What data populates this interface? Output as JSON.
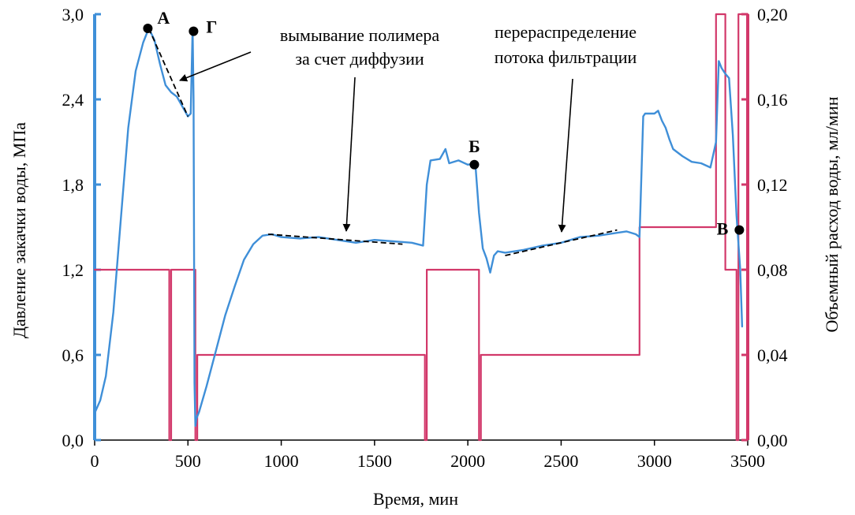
{
  "chart_data": {
    "type": "line",
    "xlabel": "Время, мин",
    "ylabel_left": "Давление закачки воды, МПа",
    "ylabel_right": "Объемный расход воды, мл/мин",
    "xlim": [
      0,
      3500
    ],
    "ylim_left": [
      0,
      3.0
    ],
    "ylim_right": [
      0,
      0.2
    ],
    "x_ticks": [
      "0",
      "500",
      "1000",
      "1500",
      "2000",
      "2500",
      "3000",
      "3500"
    ],
    "y_left_ticks": [
      "0,0",
      "0,6",
      "1,2",
      "1,8",
      "2,4",
      "3,0"
    ],
    "y_right_ticks": [
      "0,00",
      "0,04",
      "0,08",
      "0,12",
      "0,16",
      "0,20"
    ],
    "grid": false,
    "colors": {
      "pressure": "#3f8fd8",
      "flow": "#d2386a",
      "trend": "#000000"
    },
    "series": [
      {
        "key": "pressure",
        "axis": "left",
        "x": [
          0,
          30,
          60,
          100,
          140,
          180,
          220,
          260,
          290,
          320,
          350,
          380,
          410,
          440,
          470,
          500,
          515,
          525,
          530,
          535,
          540,
          545,
          560,
          600,
          650,
          700,
          750,
          800,
          850,
          900,
          950,
          1000,
          1100,
          1200,
          1300,
          1400,
          1500,
          1600,
          1700,
          1760,
          1780,
          1800,
          1850,
          1880,
          1900,
          1950,
          2000,
          2040,
          2060,
          2080,
          2100,
          2120,
          2140,
          2160,
          2200,
          2300,
          2400,
          2500,
          2600,
          2700,
          2800,
          2850,
          2900,
          2920,
          2940,
          2950,
          3000,
          3020,
          3040,
          3060,
          3080,
          3100,
          3150,
          3200,
          3250,
          3300,
          3330,
          3345,
          3360,
          3380,
          3400,
          3420,
          3440,
          3460,
          3470
        ],
        "y": [
          0.19,
          0.28,
          0.45,
          0.9,
          1.55,
          2.2,
          2.6,
          2.8,
          2.9,
          2.82,
          2.65,
          2.5,
          2.45,
          2.42,
          2.35,
          2.28,
          2.3,
          2.9,
          2.4,
          0.4,
          0.1,
          0.15,
          0.2,
          0.38,
          0.63,
          0.88,
          1.08,
          1.27,
          1.38,
          1.44,
          1.45,
          1.43,
          1.42,
          1.43,
          1.41,
          1.39,
          1.41,
          1.4,
          1.39,
          1.37,
          1.8,
          1.97,
          1.98,
          2.05,
          1.95,
          1.97,
          1.94,
          1.95,
          1.6,
          1.35,
          1.28,
          1.18,
          1.3,
          1.33,
          1.32,
          1.34,
          1.37,
          1.39,
          1.43,
          1.44,
          1.46,
          1.47,
          1.45,
          1.43,
          2.28,
          2.3,
          2.3,
          2.32,
          2.25,
          2.2,
          2.12,
          2.05,
          2.0,
          1.96,
          1.95,
          1.92,
          2.1,
          2.67,
          2.62,
          2.58,
          2.55,
          2.15,
          1.58,
          1.2,
          0.8
        ]
      },
      {
        "key": "flow",
        "axis": "right",
        "x": [
          0,
          400,
          400,
          410,
          410,
          540,
          540,
          550,
          550,
          555,
          555,
          1770,
          1770,
          1780,
          1780,
          2060,
          2060,
          2070,
          2070,
          2920,
          2920,
          3330,
          3330,
          3340,
          3340,
          3380,
          3380,
          3430,
          3430,
          3440,
          3440,
          3450,
          3450,
          3500
        ],
        "y": [
          0.08,
          0.08,
          0.0,
          0.0,
          0.08,
          0.08,
          0.0,
          0.0,
          0.04,
          0.04,
          0.04,
          0.04,
          0.0,
          0.0,
          0.08,
          0.08,
          0.0,
          0.0,
          0.04,
          0.04,
          0.1,
          0.1,
          0.2,
          0.2,
          0.2,
          0.2,
          0.08,
          0.08,
          0.08,
          0.08,
          0.0,
          0.0,
          0.2,
          0.2
        ]
      }
    ],
    "trend_lines": [
      {
        "key": "trend-peak",
        "x": [
          290,
          500
        ],
        "y": [
          2.9,
          2.28
        ]
      },
      {
        "key": "trend-diffusion",
        "x": [
          930,
          1650
        ],
        "y": [
          1.45,
          1.38
        ]
      },
      {
        "key": "trend-redistribution",
        "x": [
          2200,
          2800
        ],
        "y": [
          1.3,
          1.48
        ]
      }
    ],
    "markers": [
      {
        "label": "А",
        "x": 285,
        "y": 2.9,
        "label_pos": "right-up"
      },
      {
        "label": "Г",
        "x": 530,
        "y": 2.88,
        "label_pos": "right"
      },
      {
        "label": "Б",
        "x": 2035,
        "y": 1.94,
        "label_pos": "up"
      },
      {
        "label": "В",
        "x": 3455,
        "y": 1.48,
        "label_pos": "left"
      }
    ],
    "annotations": [
      {
        "key": "diffusion",
        "lines": [
          "вымывание полимера",
          "за счет диффузии"
        ]
      },
      {
        "key": "redistribution",
        "lines": [
          "перераспределение",
          "потока фильтрации"
        ]
      }
    ]
  }
}
